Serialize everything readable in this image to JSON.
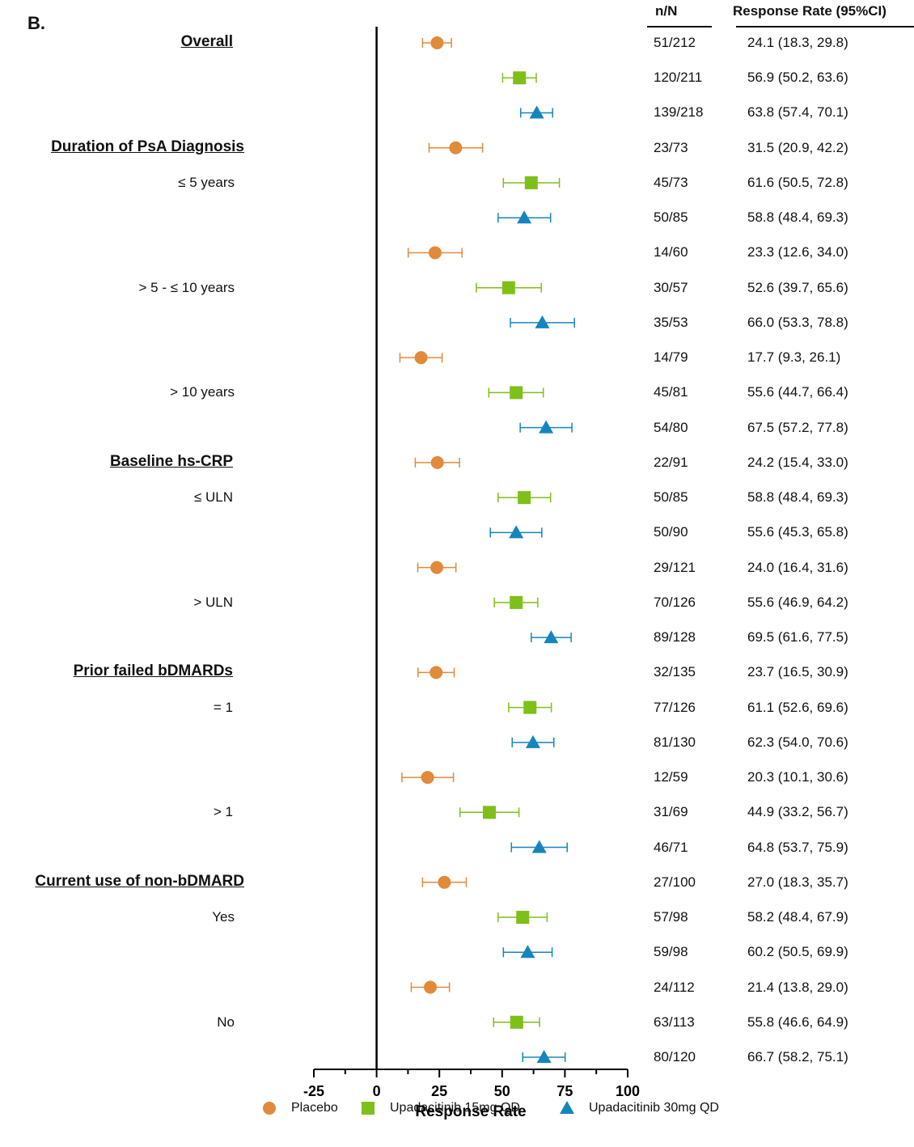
{
  "panel_label": "B.",
  "columns": {
    "n_label": "n/N",
    "rate_label": "Response Rate (95%CI)"
  },
  "colors": {
    "Placebo": "#e08a3a",
    "Upadacitinib 15mg QD": "#7fbf1a",
    "Upadacitinib 30mg QD": "#1585bd"
  },
  "chart_data": {
    "type": "scatter",
    "subtype": "forest-plot",
    "xlabel": "Response Rate",
    "xlim": [
      -25,
      100
    ],
    "xticks": [
      -25,
      0,
      25,
      50,
      75,
      100
    ],
    "legend": [
      {
        "name": "Placebo",
        "marker": "circle"
      },
      {
        "name": "Upadacitinib 15mg QD",
        "marker": "square"
      },
      {
        "name": "Upadacitinib 30mg QD",
        "marker": "triangle"
      }
    ],
    "groups": [
      {
        "header": "Overall",
        "subgroups": [
          {
            "label": "",
            "arms": [
              {
                "arm": "Placebo",
                "n": "51/212",
                "rate": 24.1,
                "lo": 18.3,
                "hi": 29.8,
                "text": "24.1 (18.3, 29.8)"
              },
              {
                "arm": "Upadacitinib 15mg QD",
                "n": "120/211",
                "rate": 56.9,
                "lo": 50.2,
                "hi": 63.6,
                "text": "56.9 (50.2, 63.6)"
              },
              {
                "arm": "Upadacitinib 30mg QD",
                "n": "139/218",
                "rate": 63.8,
                "lo": 57.4,
                "hi": 70.1,
                "text": "63.8 (57.4, 70.1)"
              }
            ]
          }
        ]
      },
      {
        "header": "Duration of PsA Diagnosis",
        "subgroups": [
          {
            "label": "≤ 5 years",
            "arms": [
              {
                "arm": "Placebo",
                "n": "23/73",
                "rate": 31.5,
                "lo": 20.9,
                "hi": 42.2,
                "text": "31.5 (20.9, 42.2)"
              },
              {
                "arm": "Upadacitinib 15mg QD",
                "n": "45/73",
                "rate": 61.6,
                "lo": 50.5,
                "hi": 72.8,
                "text": "61.6 (50.5, 72.8)"
              },
              {
                "arm": "Upadacitinib 30mg QD",
                "n": "50/85",
                "rate": 58.8,
                "lo": 48.4,
                "hi": 69.3,
                "text": "58.8 (48.4, 69.3)"
              }
            ]
          },
          {
            "label": "> 5 - ≤ 10 years",
            "arms": [
              {
                "arm": "Placebo",
                "n": "14/60",
                "rate": 23.3,
                "lo": 12.6,
                "hi": 34.0,
                "text": "23.3 (12.6, 34.0)"
              },
              {
                "arm": "Upadacitinib 15mg QD",
                "n": "30/57",
                "rate": 52.6,
                "lo": 39.7,
                "hi": 65.6,
                "text": "52.6 (39.7, 65.6)"
              },
              {
                "arm": "Upadacitinib 30mg QD",
                "n": "35/53",
                "rate": 66.0,
                "lo": 53.3,
                "hi": 78.8,
                "text": "66.0 (53.3, 78.8)"
              }
            ]
          },
          {
            "label": "> 10 years",
            "arms": [
              {
                "arm": "Placebo",
                "n": "14/79",
                "rate": 17.7,
                "lo": 9.3,
                "hi": 26.1,
                "text": "17.7 (9.3, 26.1)"
              },
              {
                "arm": "Upadacitinib 15mg QD",
                "n": "45/81",
                "rate": 55.6,
                "lo": 44.7,
                "hi": 66.4,
                "text": "55.6 (44.7, 66.4)"
              },
              {
                "arm": "Upadacitinib 30mg QD",
                "n": "54/80",
                "rate": 67.5,
                "lo": 57.2,
                "hi": 77.8,
                "text": "67.5 (57.2, 77.8)"
              }
            ]
          }
        ]
      },
      {
        "header": "Baseline hs-CRP",
        "subgroups": [
          {
            "label": "≤ ULN",
            "arms": [
              {
                "arm": "Placebo",
                "n": "22/91",
                "rate": 24.2,
                "lo": 15.4,
                "hi": 33.0,
                "text": "24.2 (15.4, 33.0)"
              },
              {
                "arm": "Upadacitinib 15mg QD",
                "n": "50/85",
                "rate": 58.8,
                "lo": 48.4,
                "hi": 69.3,
                "text": "58.8 (48.4, 69.3)"
              },
              {
                "arm": "Upadacitinib 30mg QD",
                "n": "50/90",
                "rate": 55.6,
                "lo": 45.3,
                "hi": 65.8,
                "text": "55.6 (45.3, 65.8)"
              }
            ]
          },
          {
            "label": "> ULN",
            "arms": [
              {
                "arm": "Placebo",
                "n": "29/121",
                "rate": 24.0,
                "lo": 16.4,
                "hi": 31.6,
                "text": "24.0 (16.4, 31.6)"
              },
              {
                "arm": "Upadacitinib 15mg QD",
                "n": "70/126",
                "rate": 55.6,
                "lo": 46.9,
                "hi": 64.2,
                "text": "55.6 (46.9, 64.2)"
              },
              {
                "arm": "Upadacitinib 30mg QD",
                "n": "89/128",
                "rate": 69.5,
                "lo": 61.6,
                "hi": 77.5,
                "text": "69.5 (61.6, 77.5)"
              }
            ]
          }
        ]
      },
      {
        "header": "Prior failed bDMARDs",
        "subgroups": [
          {
            "label": "= 1",
            "arms": [
              {
                "arm": "Placebo",
                "n": "32/135",
                "rate": 23.7,
                "lo": 16.5,
                "hi": 30.9,
                "text": "23.7 (16.5, 30.9)"
              },
              {
                "arm": "Upadacitinib 15mg QD",
                "n": "77/126",
                "rate": 61.1,
                "lo": 52.6,
                "hi": 69.6,
                "text": "61.1 (52.6, 69.6)"
              },
              {
                "arm": "Upadacitinib 30mg QD",
                "n": "81/130",
                "rate": 62.3,
                "lo": 54.0,
                "hi": 70.6,
                "text": "62.3 (54.0, 70.6)"
              }
            ]
          },
          {
            "label": "> 1",
            "arms": [
              {
                "arm": "Placebo",
                "n": "12/59",
                "rate": 20.3,
                "lo": 10.1,
                "hi": 30.6,
                "text": "20.3 (10.1, 30.6)"
              },
              {
                "arm": "Upadacitinib 15mg QD",
                "n": "31/69",
                "rate": 44.9,
                "lo": 33.2,
                "hi": 56.7,
                "text": "44.9 (33.2, 56.7)"
              },
              {
                "arm": "Upadacitinib 30mg QD",
                "n": "46/71",
                "rate": 64.8,
                "lo": 53.7,
                "hi": 75.9,
                "text": "64.8 (53.7, 75.9)"
              }
            ]
          }
        ]
      },
      {
        "header": "Current use of non-bDMARD",
        "subgroups": [
          {
            "label": "Yes",
            "arms": [
              {
                "arm": "Placebo",
                "n": "27/100",
                "rate": 27.0,
                "lo": 18.3,
                "hi": 35.7,
                "text": "27.0 (18.3, 35.7)"
              },
              {
                "arm": "Upadacitinib 15mg QD",
                "n": "57/98",
                "rate": 58.2,
                "lo": 48.4,
                "hi": 67.9,
                "text": "58.2 (48.4, 67.9)"
              },
              {
                "arm": "Upadacitinib 30mg QD",
                "n": "59/98",
                "rate": 60.2,
                "lo": 50.5,
                "hi": 69.9,
                "text": "60.2 (50.5, 69.9)"
              }
            ]
          },
          {
            "label": "No",
            "arms": [
              {
                "arm": "Placebo",
                "n": "24/112",
                "rate": 21.4,
                "lo": 13.8,
                "hi": 29.0,
                "text": "21.4 (13.8, 29.0)"
              },
              {
                "arm": "Upadacitinib 15mg QD",
                "n": "63/113",
                "rate": 55.8,
                "lo": 46.6,
                "hi": 64.9,
                "text": "55.8 (46.6, 64.9)"
              },
              {
                "arm": "Upadacitinib 30mg QD",
                "n": "80/120",
                "rate": 66.7,
                "lo": 58.2,
                "hi": 75.1,
                "text": "66.7 (58.2, 75.1)"
              }
            ]
          }
        ]
      }
    ]
  }
}
